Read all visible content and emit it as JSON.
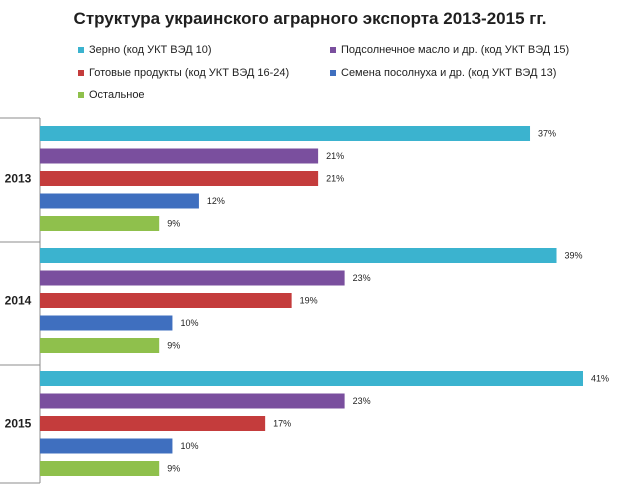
{
  "chart_data": {
    "type": "bar",
    "orientation": "horizontal",
    "title": "Структура украинского аграрного экспорта 2013-2015 гг.",
    "categories": [
      "2013",
      "2014",
      "2015"
    ],
    "series": [
      {
        "name": "Зерно (код УКТ ВЭД 10)",
        "color": "#3bb3cf",
        "values": [
          37,
          39,
          41
        ],
        "labels": [
          "37%",
          "39%",
          "41%"
        ]
      },
      {
        "name": "Подсолнечное масло и др. (код УКТ ВЭД 15)",
        "color": "#7a4f9e",
        "values": [
          21,
          23,
          23
        ],
        "labels": [
          "21%",
          "23%",
          "23%"
        ]
      },
      {
        "name": "Готовые продукты (код УКТ ВЭД 16-24)",
        "color": "#c43c3c",
        "values": [
          21,
          19,
          17
        ],
        "labels": [
          "21%",
          "19%",
          "17%"
        ]
      },
      {
        "name": "Семена посолнуха и др. (код УКТ ВЭД 13)",
        "color": "#3f6fbf",
        "values": [
          12,
          10,
          10
        ],
        "labels": [
          "12%",
          "10%",
          "10%"
        ]
      },
      {
        "name": "Остальное",
        "color": "#8fc04c",
        "values": [
          9,
          9,
          9
        ],
        "labels": [
          "9%",
          "9%",
          "9%"
        ]
      }
    ],
    "xlim": [
      0,
      41
    ],
    "grid": false,
    "legend_position": "top"
  }
}
